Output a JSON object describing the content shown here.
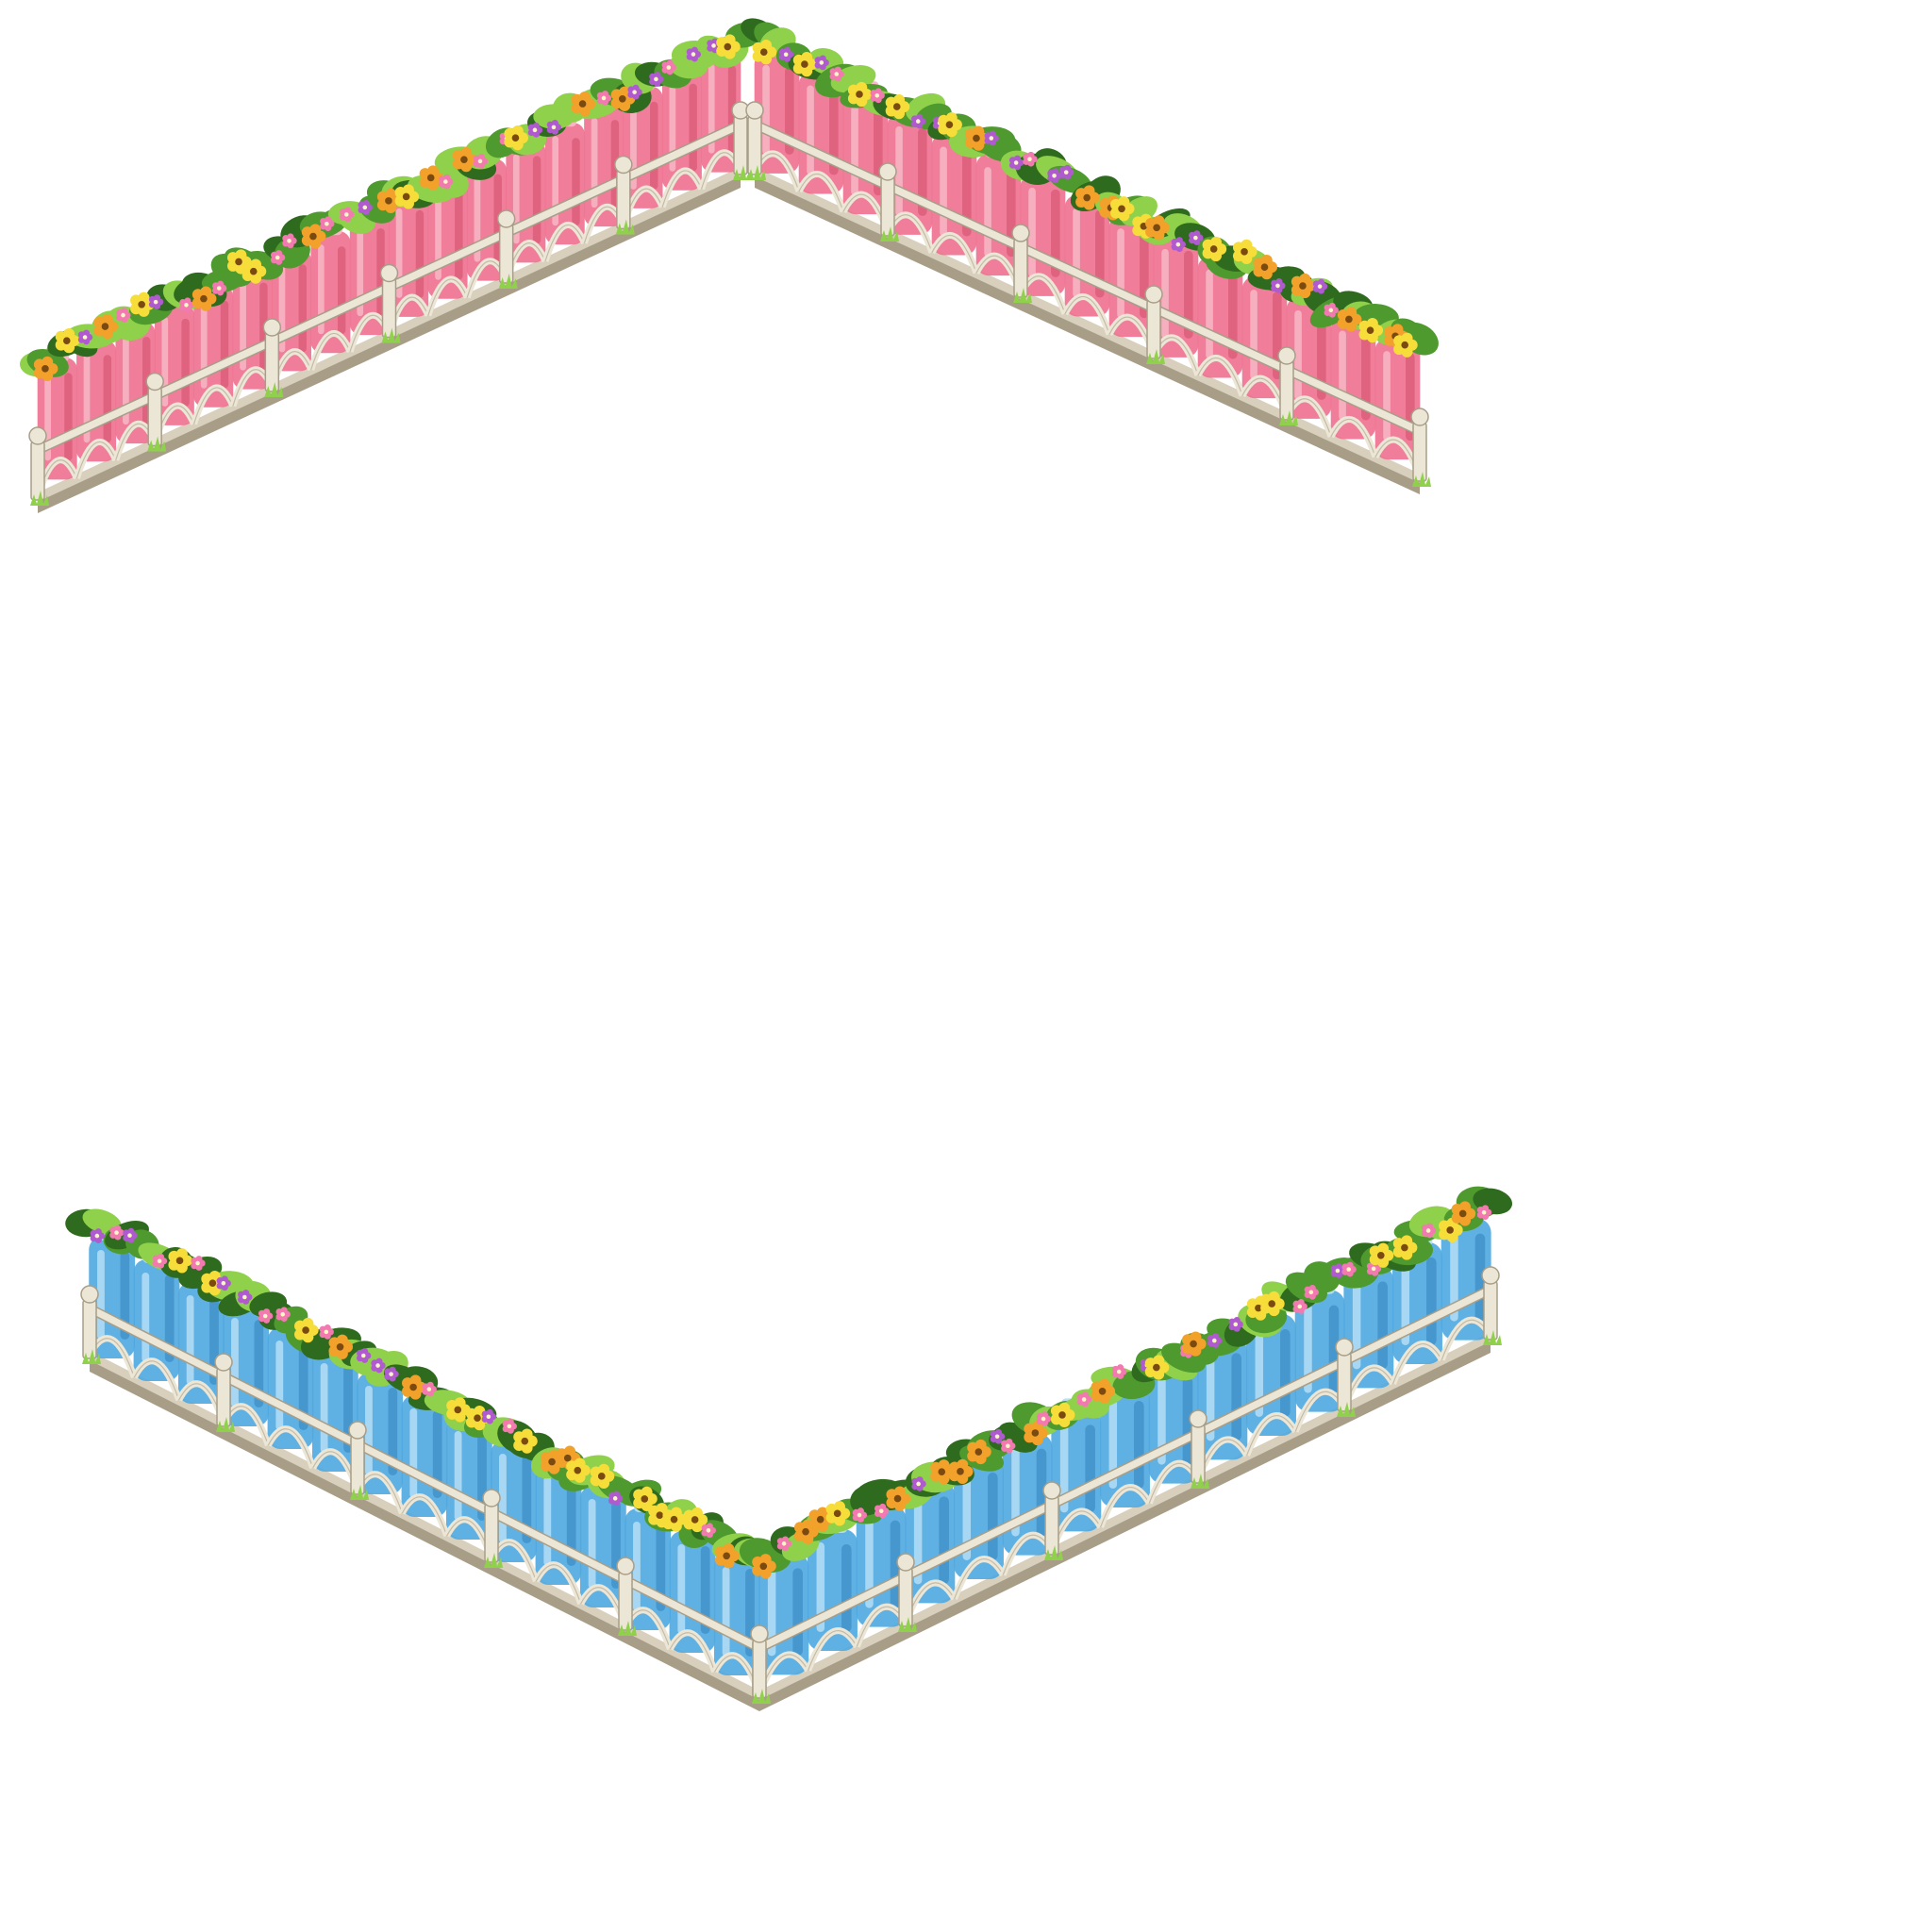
{
  "scene": {
    "background": "#ffffff",
    "colors": {
      "fence_stone": "#d8d0bc",
      "fence_stone_light": "#ece6d6",
      "fence_stone_dark": "#a89e88",
      "leaf": "#4e9a2e",
      "leaf_light": "#8fd14a",
      "leaf_dark": "#2f6b1e",
      "flower_orange": "#f2a12a",
      "flower_yellow": "#f7dd3a",
      "flower_purple": "#b05ad0",
      "flower_pink": "#f27ab0",
      "flower_center": "#7a4a10"
    }
  },
  "fences": [
    {
      "name": "pink-jar-fence",
      "jar_color": "pink",
      "jar_fill": "#ee6f8e",
      "jar_light": "#f7b7c6",
      "jar_dark": "#c9435f",
      "shape": "inverted-v",
      "left_arm_segments": 6,
      "right_arm_segments": 5
    },
    {
      "name": "blue-jar-fence",
      "jar_color": "blue",
      "jar_fill": "#4fa9e0",
      "jar_light": "#b4def6",
      "jar_dark": "#2a78b6",
      "shape": "v",
      "left_arm_segments": 5,
      "right_arm_segments": 5
    }
  ]
}
